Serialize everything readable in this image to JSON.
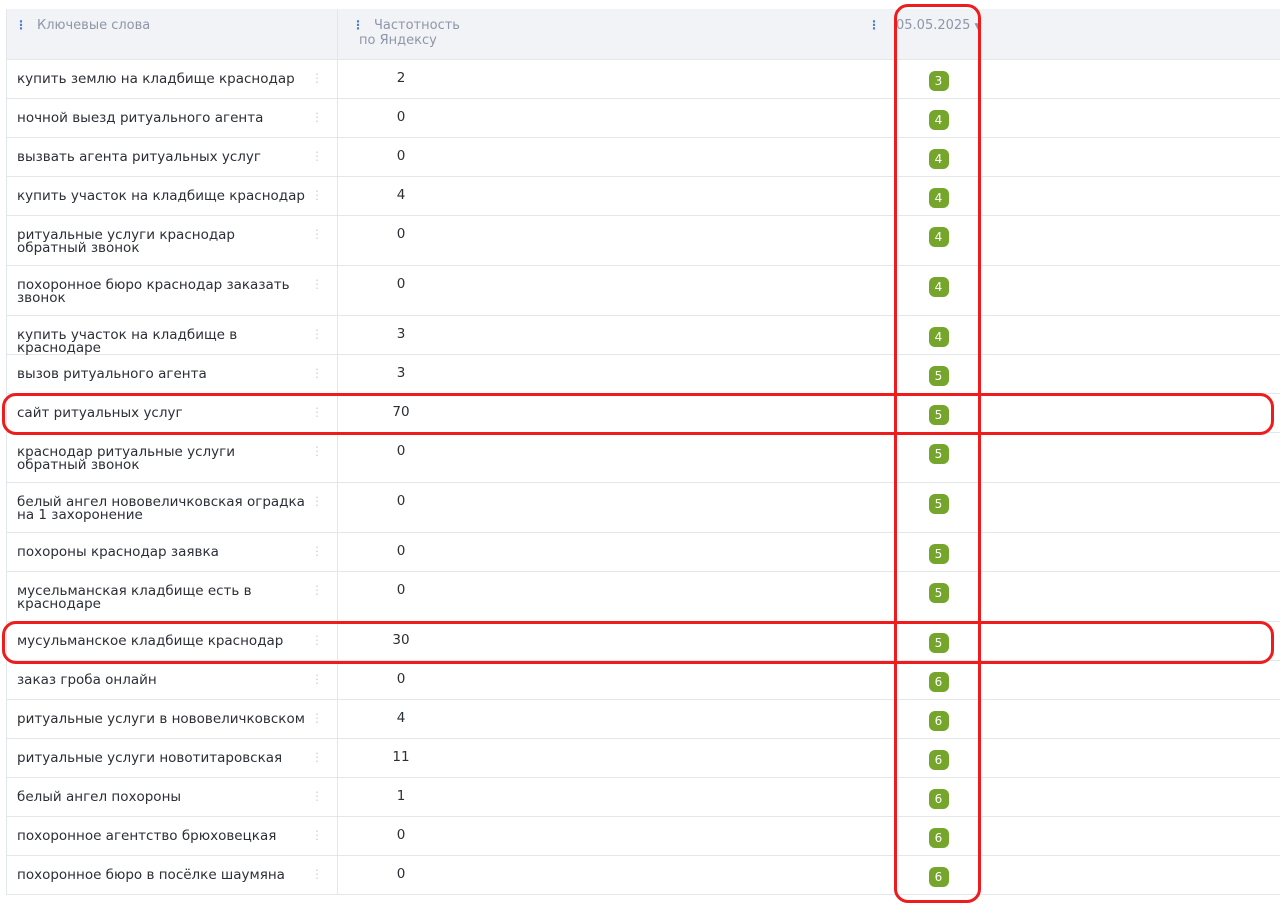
{
  "header": {
    "keywords": "Ключевые слова",
    "frequency_line1": "Частотность",
    "frequency_line2": "по Яндексу",
    "date": "05.05.2025"
  },
  "colors": {
    "badge": "#76a52c",
    "highlight": "#ee1c1c"
  },
  "rows": [
    {
      "keyword": "купить землю на кладбище краснодар",
      "freq": "2",
      "pos": "3"
    },
    {
      "keyword": "ночной выезд ритуального агента",
      "freq": "0",
      "pos": "4"
    },
    {
      "keyword": "вызвать агента ритуальных услуг",
      "freq": "0",
      "pos": "4"
    },
    {
      "keyword": "купить участок на кладбище краснодар",
      "freq": "4",
      "pos": "4"
    },
    {
      "keyword": "ритуальные услуги краснодар обратный звонок",
      "freq": "0",
      "pos": "4"
    },
    {
      "keyword": "похоронное бюро краснодар заказать звонок",
      "freq": "0",
      "pos": "4"
    },
    {
      "keyword": "купить участок на кладбище в краснодаре",
      "freq": "3",
      "pos": "4"
    },
    {
      "keyword": "вызов ритуального агента",
      "freq": "3",
      "pos": "5"
    },
    {
      "keyword": "сайт ритуальных услуг",
      "freq": "70",
      "pos": "5",
      "highlighted": true
    },
    {
      "keyword": "краснодар ритуальные услуги обратный звонок",
      "freq": "0",
      "pos": "5"
    },
    {
      "keyword": "белый ангел нововеличковская оградка на 1 захоронение",
      "freq": "0",
      "pos": "5"
    },
    {
      "keyword": "похороны краснодар заявка",
      "freq": "0",
      "pos": "5"
    },
    {
      "keyword": "мусельманская кладбище есть в краснодаре",
      "freq": "0",
      "pos": "5"
    },
    {
      "keyword": "мусульманское кладбище краснодар",
      "freq": "30",
      "pos": "5",
      "highlighted": true
    },
    {
      "keyword": "заказ гроба онлайн",
      "freq": "0",
      "pos": "6"
    },
    {
      "keyword": "ритуальные услуги в нововеличковском",
      "freq": "4",
      "pos": "6"
    },
    {
      "keyword": "ритуальные услуги новотитаровская",
      "freq": "11",
      "pos": "6"
    },
    {
      "keyword": "белый ангел похороны",
      "freq": "1",
      "pos": "6"
    },
    {
      "keyword": "похоронное агентство брюховецкая",
      "freq": "0",
      "pos": "6"
    },
    {
      "keyword": "похоронное бюро в посёлке шаумяна",
      "freq": "0",
      "pos": "6"
    }
  ]
}
